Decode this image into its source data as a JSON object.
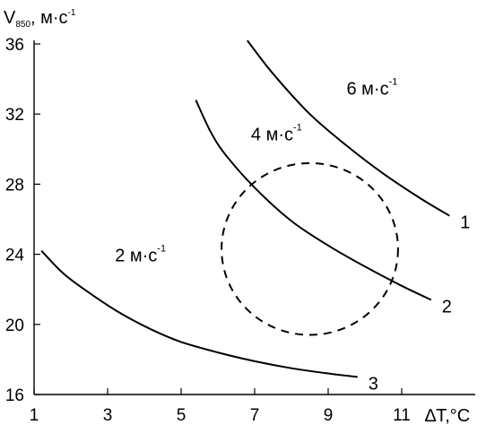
{
  "chart_data": {
    "type": "line",
    "ylabel": {
      "main": "V",
      "sub": "850",
      "unit": ", м·с",
      "sup": "-1"
    },
    "xlabel": {
      "main": "∆T,",
      "unit": "°C"
    },
    "xlim": [
      1,
      13
    ],
    "ylim": [
      16,
      36
    ],
    "x_ticks": [
      1,
      3,
      5,
      7,
      9,
      11
    ],
    "y_ticks": [
      16,
      20,
      24,
      28,
      32,
      36
    ],
    "series": [
      {
        "name": "1",
        "points": [
          [
            6.8,
            36.2
          ],
          [
            7.5,
            34.3
          ],
          [
            8.5,
            32.0
          ],
          [
            9.5,
            30.2
          ],
          [
            10.5,
            28.6
          ],
          [
            11.5,
            27.2
          ],
          [
            12.3,
            26.2
          ]
        ]
      },
      {
        "name": "2",
        "points": [
          [
            5.4,
            32.8
          ],
          [
            5.8,
            31.0
          ],
          [
            6.2,
            29.7
          ],
          [
            7.0,
            27.8
          ],
          [
            8.0,
            25.9
          ],
          [
            9.0,
            24.5
          ],
          [
            10.0,
            23.3
          ],
          [
            11.0,
            22.2
          ],
          [
            11.8,
            21.4
          ]
        ]
      },
      {
        "name": "3",
        "points": [
          [
            1.2,
            24.2
          ],
          [
            1.8,
            22.9
          ],
          [
            2.5,
            21.8
          ],
          [
            3.3,
            20.7
          ],
          [
            4.2,
            19.7
          ],
          [
            5.0,
            19.0
          ],
          [
            6.0,
            18.4
          ],
          [
            7.0,
            17.9
          ],
          [
            8.0,
            17.5
          ],
          [
            9.0,
            17.2
          ],
          [
            9.8,
            17.0
          ]
        ]
      }
    ],
    "annotations": [
      {
        "text": "6 м·с",
        "sup": "-1",
        "x": 9.5,
        "y": 33.1
      },
      {
        "text": "4 м·с",
        "sup": "-1",
        "x": 6.9,
        "y": 30.5
      },
      {
        "text": "2 м·с",
        "sup": "-1",
        "x": 3.2,
        "y": 23.6
      }
    ],
    "dashed_circle": {
      "cx": 8.5,
      "cy": 24.3,
      "rx": 2.4,
      "ry": 4.9
    }
  }
}
